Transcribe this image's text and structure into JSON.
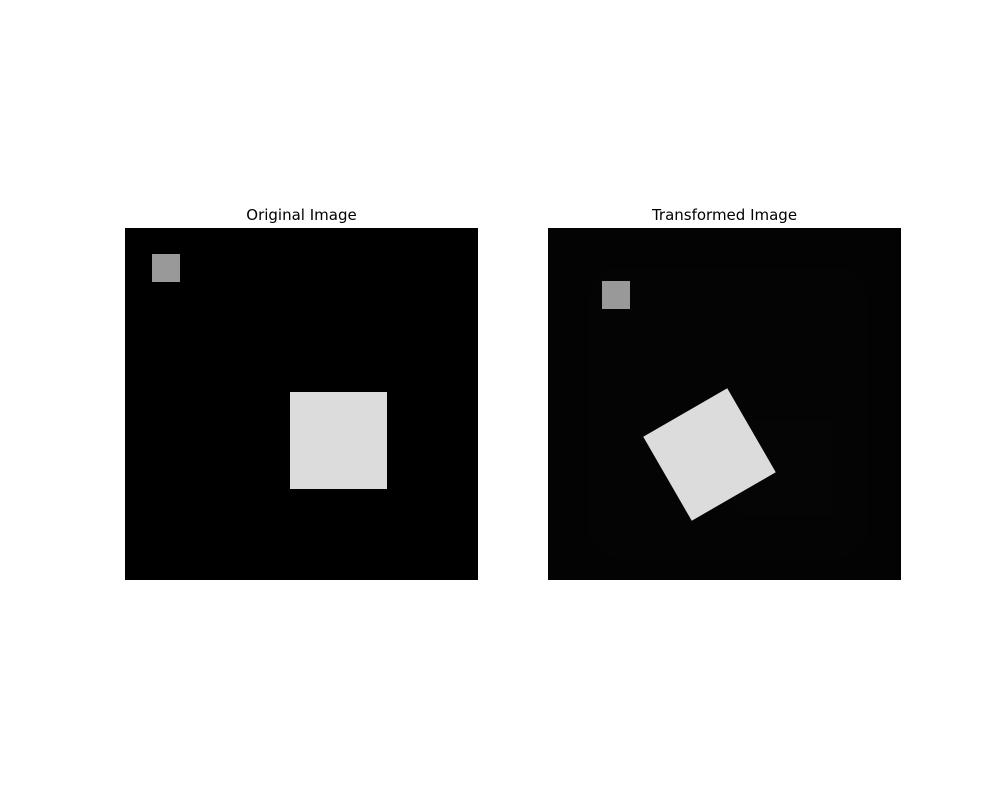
{
  "panels": {
    "left": {
      "title": "Original Image",
      "small_square_color": "#999999",
      "large_square_color": "#dcdcdc"
    },
    "right": {
      "title": "Transformed Image",
      "small_square_color": "#999999",
      "large_square_color": "#dcdcdc",
      "rotation_degrees": 30
    }
  }
}
